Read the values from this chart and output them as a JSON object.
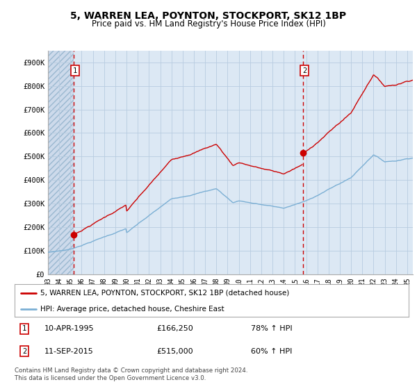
{
  "title": "5, WARREN LEA, POYNTON, STOCKPORT, SK12 1BP",
  "subtitle": "Price paid vs. HM Land Registry's House Price Index (HPI)",
  "background_color": "#dce8f4",
  "hatch_bg_color": "#cddaeb",
  "grid_color": "#b8cce0",
  "sale1_date_num": 1995.27,
  "sale1_price": 166250,
  "sale2_date_num": 2015.69,
  "sale2_price": 515000,
  "ylim": [
    0,
    950000
  ],
  "xlim_start": 1993.0,
  "xlim_end": 2025.5,
  "yticks": [
    0,
    100000,
    200000,
    300000,
    400000,
    500000,
    600000,
    700000,
    800000,
    900000
  ],
  "ytick_labels": [
    "£0",
    "£100K",
    "£200K",
    "£300K",
    "£400K",
    "£500K",
    "£600K",
    "£700K",
    "£800K",
    "£900K"
  ],
  "xticks": [
    1993,
    1994,
    1995,
    1996,
    1997,
    1998,
    1999,
    2000,
    2001,
    2002,
    2003,
    2004,
    2005,
    2006,
    2007,
    2008,
    2009,
    2010,
    2011,
    2012,
    2013,
    2014,
    2015,
    2016,
    2017,
    2018,
    2019,
    2020,
    2021,
    2022,
    2023,
    2024,
    2025
  ],
  "hpi_line_color": "#7bafd4",
  "sale_line_color": "#cc0000",
  "sale_dot_color": "#cc0000",
  "vline_color": "#cc0000",
  "legend_label_sale": "5, WARREN LEA, POYNTON, STOCKPORT, SK12 1BP (detached house)",
  "legend_label_hpi": "HPI: Average price, detached house, Cheshire East",
  "annotation1_label": "10-APR-1995",
  "annotation1_price": "£166,250",
  "annotation1_hpi": "78% ↑ HPI",
  "annotation2_label": "11-SEP-2015",
  "annotation2_price": "£515,000",
  "annotation2_hpi": "60% ↑ HPI",
  "footer": "Contains HM Land Registry data © Crown copyright and database right 2024.\nThis data is licensed under the Open Government Licence v3.0."
}
